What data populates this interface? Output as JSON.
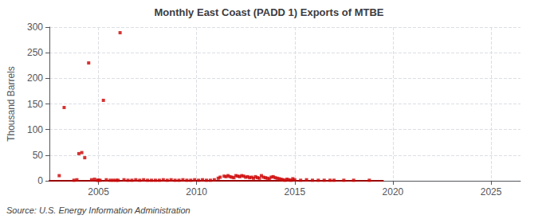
{
  "chart_data": {
    "type": "scatter",
    "title": "Monthly East Coast (PADD 1) Exports of MTBE",
    "ylabel": "Thousand Barrels",
    "source": "Source: U.S. Energy Information Administration",
    "xlim": [
      2002.5,
      2026.5
    ],
    "ylim": [
      0,
      300
    ],
    "xticks": [
      2005,
      2010,
      2015,
      2020,
      2025
    ],
    "yticks": [
      0,
      50,
      100,
      150,
      200,
      250,
      300
    ],
    "grid": true,
    "series": [
      {
        "type": "line",
        "color": "#990000",
        "x": [
          2002.5,
          2019.5
        ],
        "values": [
          0,
          0
        ]
      },
      {
        "type": "scatter",
        "color": "#cc0000",
        "marker": "square",
        "x": [
          2003.0,
          2003.25,
          2003.75,
          2003.9,
          2004.0,
          2004.15,
          2004.3,
          2004.5,
          2004.65,
          2004.8,
          2004.95,
          2005.0,
          2005.08,
          2005.25,
          2005.4,
          2005.6,
          2005.75,
          2005.9,
          2006.0,
          2006.1,
          2006.3,
          2006.5,
          2006.7,
          2006.9,
          2007.1,
          2007.3,
          2007.5,
          2007.7,
          2007.9,
          2008.1,
          2008.3,
          2008.5,
          2008.7,
          2008.9,
          2009.1,
          2009.3,
          2009.5,
          2009.7,
          2009.9,
          2010.1,
          2010.3,
          2010.5,
          2010.7,
          2010.9,
          2011.1,
          2011.2,
          2011.4,
          2011.5,
          2011.6,
          2011.7,
          2011.8,
          2011.9,
          2012.0,
          2012.1,
          2012.2,
          2012.3,
          2012.4,
          2012.5,
          2012.6,
          2012.7,
          2012.8,
          2012.9,
          2013.0,
          2013.1,
          2013.2,
          2013.3,
          2013.4,
          2013.5,
          2013.6,
          2013.7,
          2013.8,
          2013.9,
          2014.0,
          2014.1,
          2014.2,
          2014.3,
          2014.4,
          2014.5,
          2014.6,
          2014.7,
          2014.8,
          2014.9,
          2015.0,
          2015.3,
          2015.6,
          2015.9,
          2016.2,
          2016.5,
          2016.8,
          2017.0,
          2017.5,
          2018.0,
          2018.8
        ],
        "values": [
          10,
          143,
          1,
          2,
          53,
          55,
          45,
          230,
          2,
          3,
          1,
          1,
          1,
          157,
          2,
          1,
          1,
          1,
          1,
          289,
          2,
          1,
          1,
          2,
          1,
          2,
          1,
          1,
          1,
          1,
          2,
          1,
          2,
          1,
          1,
          2,
          1,
          1,
          2,
          1,
          2,
          1,
          1,
          2,
          5,
          7,
          9,
          8,
          10,
          8,
          7,
          6,
          10,
          9,
          8,
          10,
          9,
          7,
          8,
          6,
          7,
          5,
          8,
          6,
          5,
          10,
          7,
          6,
          5,
          4,
          7,
          8,
          6,
          5,
          4,
          3,
          2,
          1,
          3,
          2,
          1,
          4,
          2,
          1,
          2,
          1,
          1,
          1,
          1,
          1,
          1,
          1,
          1
        ]
      }
    ]
  }
}
